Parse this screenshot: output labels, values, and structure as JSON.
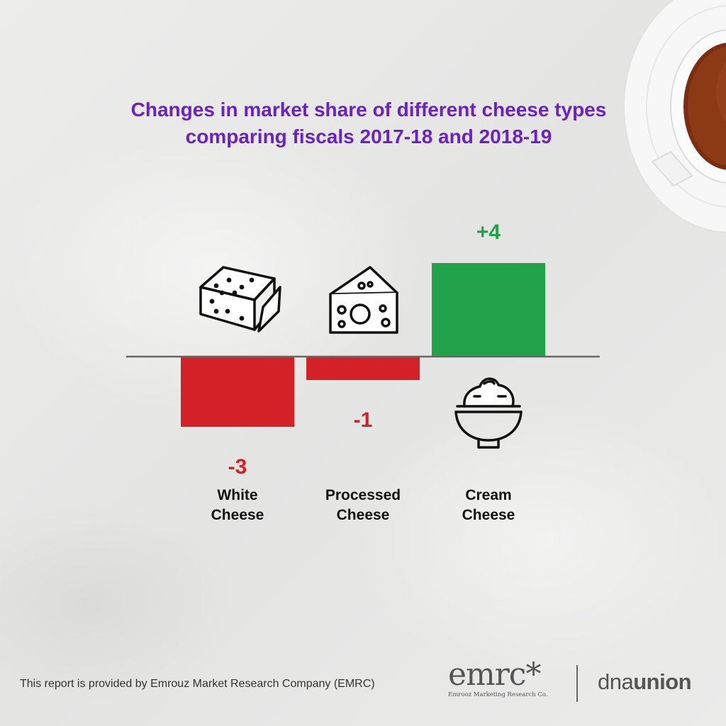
{
  "chart_data": {
    "type": "bar",
    "title": "Changes in market share of different cheese types comparing fiscals 2017-18 and 2018-19",
    "categories": [
      "White Cheese",
      "Processed Cheese",
      "Cream Cheese"
    ],
    "category_lines": [
      [
        "White",
        "Cheese"
      ],
      [
        "Processed",
        "Cheese"
      ],
      [
        "Cream",
        "Cheese"
      ]
    ],
    "values": [
      -3,
      -1,
      4
    ],
    "value_labels": [
      "-3",
      "-1",
      "+4"
    ],
    "icons": [
      "cheese-block-icon",
      "swiss-cheese-icon",
      "cream-cheese-bowl-icon"
    ],
    "colors": {
      "negative": "#d42128",
      "positive": "#22a24a",
      "title": "#6b21c8",
      "axis": "#666666"
    },
    "xlabel": "",
    "ylabel": "",
    "grid": false
  },
  "footer": {
    "note": "This report is provided by Emrouz Market Research Company (EMRC)",
    "logo_emrc": "emrc*",
    "logo_emrc_subtitle": "Emrooz Marketing Research Co.",
    "logo_dna_light": "dna",
    "logo_dna_bold": "union"
  }
}
